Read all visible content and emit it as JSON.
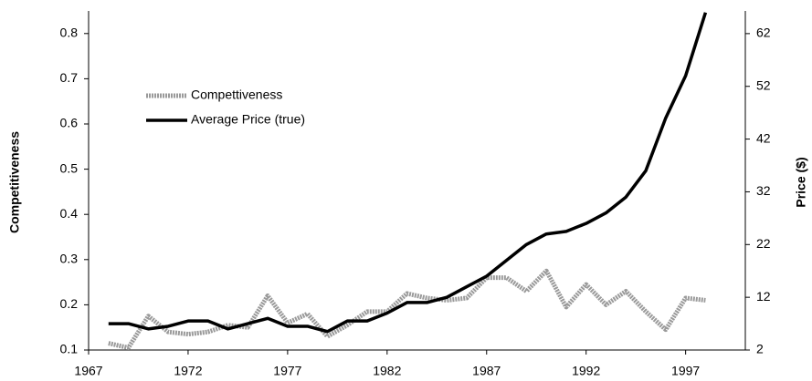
{
  "chart_data": {
    "type": "line",
    "x": [
      1968,
      1969,
      1970,
      1971,
      1972,
      1973,
      1974,
      1975,
      1976,
      1977,
      1978,
      1979,
      1980,
      1981,
      1982,
      1983,
      1984,
      1985,
      1986,
      1987,
      1988,
      1989,
      1990,
      1991,
      1992,
      1993,
      1994,
      1995,
      1996,
      1997,
      1998
    ],
    "xlim": [
      1967,
      2000
    ],
    "xticks": [
      1967,
      1972,
      1977,
      1982,
      1987,
      1992,
      1997
    ],
    "ylabel": "Competitiveness",
    "y2label": "Price ($)",
    "ylim": [
      0.1,
      0.85
    ],
    "yticks": [
      0.1,
      0.2,
      0.3,
      0.4,
      0.5,
      0.6,
      0.7,
      0.8
    ],
    "y2lim": [
      2,
      66.3
    ],
    "y2ticks": [
      2,
      12,
      22,
      32,
      42,
      52,
      62
    ],
    "series": [
      {
        "name": "Compettiveness",
        "color": "#9a9a9a",
        "values": [
          0.115,
          0.105,
          0.175,
          0.14,
          0.135,
          0.14,
          0.155,
          0.15,
          0.22,
          0.16,
          0.18,
          0.13,
          0.155,
          0.185,
          0.185,
          0.225,
          0.215,
          0.21,
          0.215,
          0.26,
          0.26,
          0.23,
          0.275,
          0.195,
          0.245,
          0.2,
          0.23,
          0.185,
          0.145,
          0.215,
          0.21
        ]
      },
      {
        "name": "Average Price (true)",
        "color": "#000000",
        "axis": "y2",
        "values": [
          7,
          7,
          6,
          6.5,
          7.5,
          7.5,
          6,
          7,
          8,
          6.5,
          6.5,
          5.5,
          7.5,
          7.5,
          9,
          11,
          11,
          12,
          14,
          16,
          19,
          22,
          24,
          24.5,
          26,
          28,
          31,
          36,
          46,
          54,
          66
        ]
      }
    ]
  }
}
